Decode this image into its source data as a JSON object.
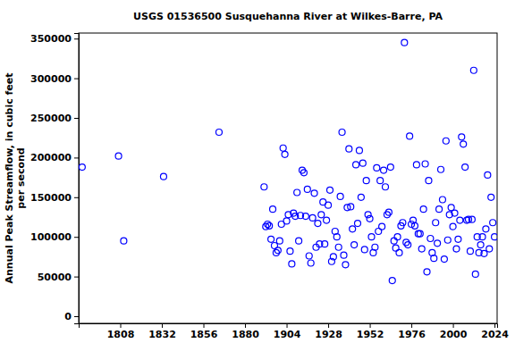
{
  "chart_data": {
    "type": "scatter",
    "title": "USGS 01536500 Susquehanna River at Wilkes-Barre, PA",
    "ylabel": [
      "Annual Peak Streamflow, in cubic feet",
      "per second"
    ],
    "color": "#0000ff",
    "marker": "circle",
    "grid": false,
    "xlim": [
      1784,
      2025.5
    ],
    "ylim": [
      -9000,
      357000
    ],
    "xticks": [
      1808,
      1832,
      1856,
      1880,
      1904,
      1928,
      1952,
      1976,
      2000,
      2024
    ],
    "yticks": [
      0,
      50000,
      100000,
      150000,
      200000,
      250000,
      300000,
      350000
    ],
    "x": [
      1786,
      1807,
      1810,
      1833,
      1865,
      1891,
      1892,
      1893,
      1894,
      1895,
      1896,
      1897,
      1898,
      1899,
      1900,
      1901,
      1902,
      1903,
      1904,
      1905,
      1906,
      1907,
      1908,
      1909,
      1910,
      1911,
      1912,
      1913,
      1914,
      1915,
      1916,
      1917,
      1918,
      1919,
      1920,
      1921,
      1922,
      1923,
      1924,
      1925,
      1926,
      1927,
      1928,
      1929,
      1930,
      1931,
      1932,
      1933,
      1934,
      1935,
      1936,
      1937,
      1938,
      1939,
      1940,
      1941,
      1942,
      1943,
      1944,
      1945,
      1946,
      1947,
      1948,
      1949,
      1950,
      1951,
      1952,
      1953,
      1954,
      1955,
      1956,
      1957,
      1958,
      1959,
      1960,
      1961,
      1962,
      1963,
      1964,
      1965,
      1966,
      1967,
      1968,
      1969,
      1970,
      1971,
      1972,
      1973,
      1974,
      1975,
      1976,
      1977,
      1978,
      1979,
      1980,
      1981,
      1982,
      1983,
      1984,
      1985,
      1986,
      1987,
      1988,
      1989,
      1990,
      1991,
      1992,
      1993,
      1994,
      1995,
      1996,
      1997,
      1998,
      1999,
      2000,
      2001,
      2002,
      2003,
      2004,
      2005,
      2006,
      2007,
      2008,
      2009,
      2010,
      2011,
      2012,
      2013,
      2014,
      2015,
      2016,
      2017,
      2018,
      2019,
      2020,
      2021,
      2022,
      2023,
      2024
    ],
    "values": [
      188000,
      202000,
      95000,
      176000,
      232000,
      163000,
      113000,
      116000,
      114000,
      97000,
      135000,
      89000,
      80000,
      83000,
      95000,
      116000,
      212000,
      204000,
      120000,
      128000,
      82000,
      66000,
      130000,
      126000,
      156000,
      95000,
      127000,
      184000,
      181000,
      126000,
      160000,
      76000,
      67000,
      124000,
      155000,
      87000,
      117000,
      91000,
      128000,
      144000,
      91000,
      121000,
      140000,
      159000,
      69000,
      75000,
      107000,
      100000,
      87000,
      151000,
      232000,
      77000,
      65000,
      137000,
      211000,
      138000,
      110000,
      90000,
      191000,
      117000,
      209000,
      150000,
      193000,
      84000,
      171000,
      128000,
      123000,
      100000,
      80000,
      87000,
      187000,
      107000,
      171000,
      113000,
      184000,
      163000,
      128000,
      131000,
      188000,
      45000,
      95000,
      86000,
      100000,
      80000,
      114000,
      118000,
      345000,
      93000,
      90000,
      227000,
      116000,
      121000,
      114000,
      191000,
      104000,
      104000,
      85000,
      135000,
      192000,
      56000,
      171000,
      98000,
      80000,
      73000,
      118000,
      92000,
      135000,
      185000,
      147000,
      72000,
      221000,
      96000,
      128000,
      137000,
      113000,
      130000,
      85000,
      97000,
      121000,
      226000,
      217000,
      188000,
      121000,
      122000,
      82000,
      122000,
      310000,
      53000,
      100000,
      80000,
      90000,
      100000,
      79000,
      110000,
      178000,
      85000,
      150000,
      118000,
      100000
    ]
  }
}
